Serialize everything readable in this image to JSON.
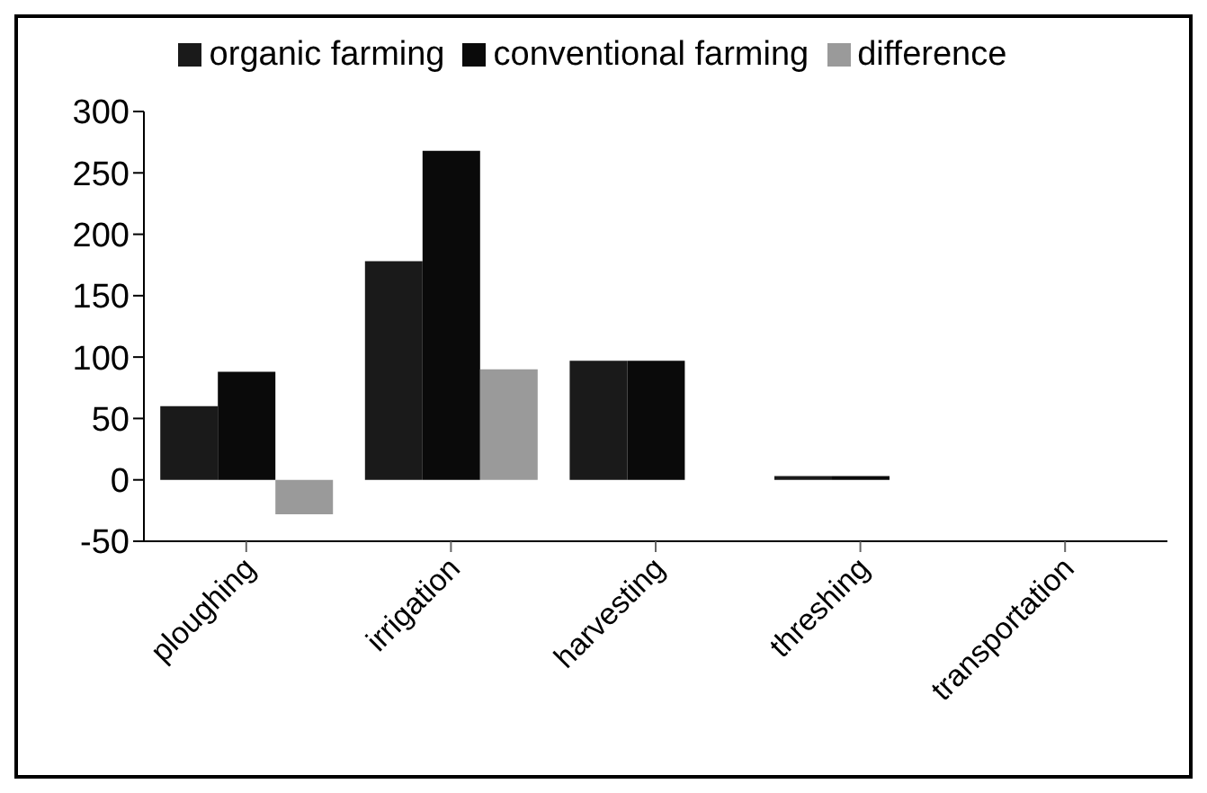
{
  "chart_data": {
    "type": "bar",
    "categories": [
      "ploughing",
      "irrigation",
      "harvesting",
      "threshing",
      "transportation"
    ],
    "series": [
      {
        "name": "organic farming",
        "color": "#1a1a1a",
        "values": [
          60,
          178,
          97,
          3,
          0
        ]
      },
      {
        "name": "conventional farming",
        "color": "#0a0a0a",
        "values": [
          88,
          268,
          97,
          3,
          0
        ]
      },
      {
        "name": "difference",
        "color": "#9a9a9a",
        "values": [
          -28,
          90,
          0,
          0,
          0
        ]
      }
    ],
    "ylim": [
      -50,
      300
    ],
    "yticks": [
      -50,
      0,
      50,
      100,
      150,
      200,
      250,
      300
    ],
    "grid": false,
    "legend": "top"
  }
}
